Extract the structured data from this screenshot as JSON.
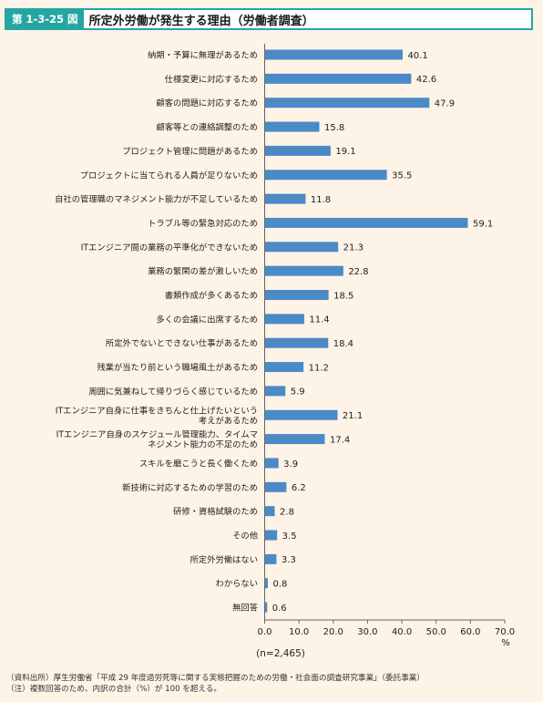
{
  "figure": {
    "number": "第 1-3-25 図",
    "title": "所定外労働が発生する理由（労働者調査）"
  },
  "chart_data": {
    "type": "bar",
    "orientation": "horizontal",
    "categories": [
      "納期・予算に無理があるため",
      "仕様変更に対応するため",
      "顧客の問題に対応するため",
      "顧客等との連絡調整のため",
      "プロジェクト管理に問題があるため",
      "プロジェクトに当てられる人員が足りないため",
      "自社の管理職のマネジメント能力が不足しているため",
      "トラブル等の緊急対応のため",
      "ITエンジニア間の業務の平準化ができないため",
      "業務の繁閑の差が激しいため",
      "書類作成が多くあるため",
      "多くの会議に出席するため",
      "所定外でないとできない仕事があるため",
      "残業が当たり前という職場風土があるため",
      "周囲に気兼ねして帰りづらく感じているため",
      "ITエンジニア自身に仕事をきちんと仕上げたいという\n考えがあるため",
      "ITエンジニア自身のスケジュール管理能力、タイムマ\nネジメント能力の不足のため",
      "スキルを磨こうと長く働くため",
      "新技術に対応するための学習のため",
      "研修・資格試験のため",
      "その他",
      "所定外労働はない",
      "わからない",
      "無回答"
    ],
    "values": [
      40.1,
      42.6,
      47.9,
      15.8,
      19.1,
      35.5,
      11.8,
      59.1,
      21.3,
      22.8,
      18.5,
      11.4,
      18.4,
      11.2,
      5.9,
      21.1,
      17.4,
      3.9,
      6.2,
      2.8,
      3.5,
      3.3,
      0.8,
      0.6
    ],
    "value_labels": [
      "40.1",
      "42.6",
      "47.9",
      "15.8",
      "19.1",
      "35.5",
      "11.8",
      "59.1",
      "21.3",
      "22.8",
      "18.5",
      "11.4",
      "18.4",
      "11.2",
      "5.9",
      "21.1",
      "17.4",
      "3.9",
      "6.2",
      "2.8",
      "3.5",
      "3.3",
      "0.8",
      "0.6"
    ],
    "xlim": [
      0,
      70
    ],
    "ticks": [
      "0.0",
      "10.0",
      "20.0",
      "30.0",
      "40.0",
      "50.0",
      "60.0",
      "70.0"
    ],
    "unit": "%",
    "sample_note": "(n=2,465)",
    "bar_color": "#4b8ac7",
    "grid": false
  },
  "notes": [
    "（資料出所）厚生労働省「平成 29 年度過労死等に関する実態把握のための労働・社会面の調査研究事業」（委託事業）",
    "（注）複数回答のため、内訳の合計（%）が 100 を超える。"
  ]
}
